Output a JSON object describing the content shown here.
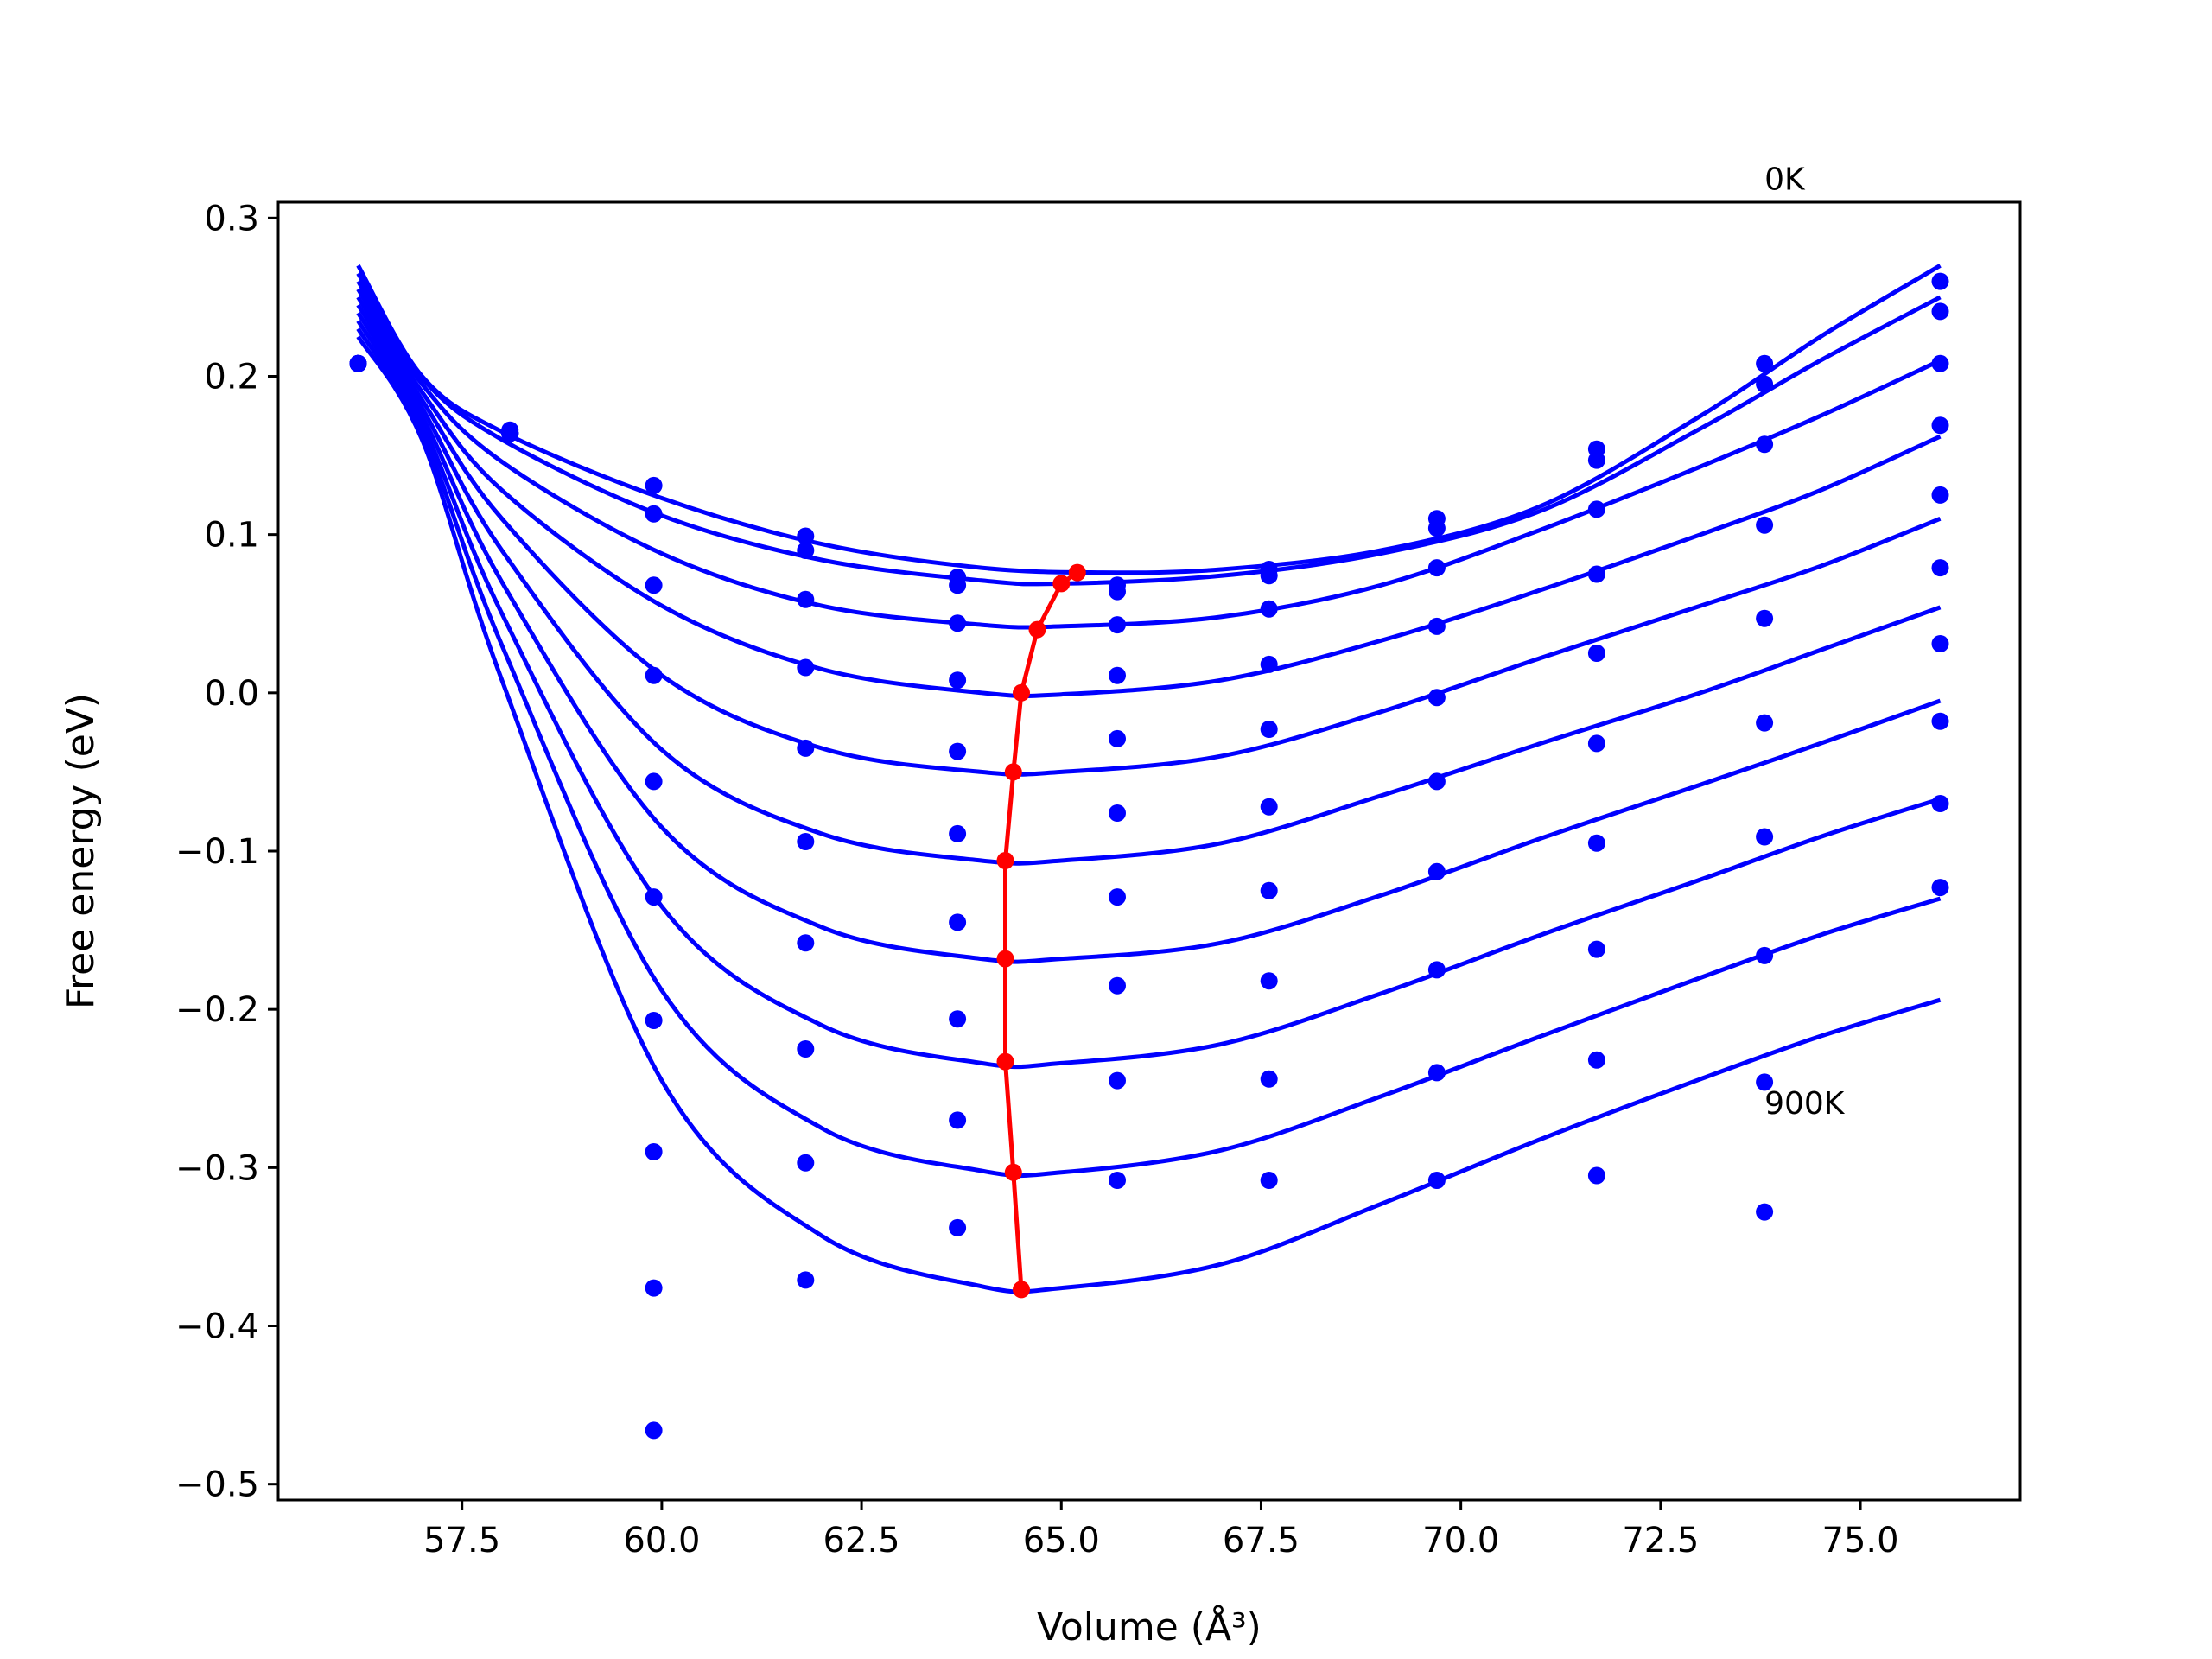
{
  "chart_data": {
    "type": "line",
    "xlabel": "Volume (Å³)",
    "ylabel": "Free energy (eV)",
    "xlim": [
      55.2,
      77.0
    ],
    "ylim": [
      -0.51,
      0.31
    ],
    "xticks": [
      57.5,
      60.0,
      62.5,
      65.0,
      67.5,
      70.0,
      72.5,
      75.0
    ],
    "xtick_labels": [
      "57.5",
      "60.0",
      "62.5",
      "65.0",
      "67.5",
      "70.0",
      "72.5",
      "75.0"
    ],
    "yticks": [
      0.3,
      0.2,
      0.1,
      0.0,
      -0.1,
      -0.2,
      -0.3,
      -0.4,
      -0.5
    ],
    "ytick_labels": [
      "0.3",
      "0.2",
      "0.1",
      "0.0",
      "−0.1",
      "−0.2",
      "−0.3",
      "−0.4",
      "−0.5"
    ],
    "grid": false,
    "legend": "none",
    "annotations": [
      {
        "text": "0K",
        "x": 73.8,
        "y": 0.318
      },
      {
        "text": "900K",
        "x": 73.8,
        "y": -0.266
      }
    ],
    "colors": {
      "fit": "#0000ff",
      "data": "#0000ff",
      "minimum": "#ff0000"
    },
    "points_x": [
      56.2,
      58.1,
      59.9,
      61.8,
      63.7,
      65.7,
      67.6,
      69.7,
      71.7,
      73.8,
      76.0
    ],
    "series": [
      {
        "curve": [
          [
            56.2,
            0.27
          ],
          [
            57.0,
            0.2
          ],
          [
            58.0,
            0.165
          ],
          [
            60.0,
            0.123
          ],
          [
            62.0,
            0.094
          ],
          [
            64.0,
            0.079
          ],
          [
            65.5,
            0.076
          ],
          [
            67.0,
            0.078
          ],
          [
            69.0,
            0.09
          ],
          [
            71.0,
            0.118
          ],
          [
            73.0,
            0.175
          ],
          [
            74.5,
            0.225
          ],
          [
            76.0,
            0.27
          ]
        ],
        "points": [
          0.208,
          0.166,
          0.131,
          0.099,
          0.073,
          0.068,
          0.078,
          0.11,
          0.154,
          0.208,
          0.26
        ]
      },
      {
        "curve": [
          [
            56.2,
            0.265
          ],
          [
            57.0,
            0.199
          ],
          [
            58.0,
            0.16
          ],
          [
            60.0,
            0.112
          ],
          [
            62.0,
            0.084
          ],
          [
            64.0,
            0.071
          ],
          [
            65.0,
            0.069
          ],
          [
            67.0,
            0.074
          ],
          [
            69.0,
            0.088
          ],
          [
            71.0,
            0.115
          ],
          [
            73.0,
            0.167
          ],
          [
            74.5,
            0.21
          ],
          [
            76.0,
            0.25
          ]
        ],
        "points": [
          0.208,
          0.164,
          0.113,
          0.09,
          0.068,
          0.064,
          0.074,
          0.104,
          0.147,
          0.195,
          0.241
        ]
      },
      {
        "curve": [
          [
            56.2,
            0.26
          ],
          [
            57.0,
            0.195
          ],
          [
            58.0,
            0.146
          ],
          [
            60.0,
            0.088
          ],
          [
            62.0,
            0.055
          ],
          [
            64.0,
            0.043
          ],
          [
            65.0,
            0.042
          ],
          [
            67.0,
            0.048
          ],
          [
            69.0,
            0.068
          ],
          [
            71.0,
            0.103
          ],
          [
            73.0,
            0.143
          ],
          [
            74.5,
            0.175
          ],
          [
            76.0,
            0.21
          ]
        ],
        "points": [
          0.208,
          0.164,
          0.068,
          0.059,
          0.044,
          0.043,
          0.053,
          0.079,
          0.116,
          0.157,
          0.208
        ]
      },
      {
        "curve": [
          [
            56.2,
            0.255
          ],
          [
            57.0,
            0.19
          ],
          [
            58.0,
            0.128
          ],
          [
            60.0,
            0.055
          ],
          [
            62.0,
            0.015
          ],
          [
            64.0,
            0.0
          ],
          [
            65.0,
            -0.001
          ],
          [
            67.0,
            0.008
          ],
          [
            69.0,
            0.033
          ],
          [
            71.0,
            0.065
          ],
          [
            73.0,
            0.1
          ],
          [
            74.5,
            0.128
          ],
          [
            76.0,
            0.162
          ]
        ],
        "points": [
          0.208,
          0.164,
          0.011,
          0.016,
          0.008,
          0.011,
          0.018,
          0.042,
          0.075,
          0.106,
          0.169
        ]
      },
      {
        "curve": [
          [
            56.2,
            0.25
          ],
          [
            57.0,
            0.185
          ],
          [
            58.0,
            0.11
          ],
          [
            60.0,
            0.011
          ],
          [
            62.0,
            -0.035
          ],
          [
            64.0,
            -0.05
          ],
          [
            65.0,
            -0.05
          ],
          [
            67.0,
            -0.04
          ],
          [
            69.0,
            -0.012
          ],
          [
            71.0,
            0.022
          ],
          [
            73.0,
            0.055
          ],
          [
            74.5,
            0.08
          ],
          [
            76.0,
            0.11
          ]
        ],
        "points": [
          0.208,
          0.164,
          -0.056,
          -0.035,
          -0.037,
          -0.029,
          -0.023,
          -0.003,
          0.025,
          0.047,
          0.125
        ]
      },
      {
        "curve": [
          [
            56.2,
            0.245
          ],
          [
            57.0,
            0.18
          ],
          [
            58.0,
            0.09
          ],
          [
            60.0,
            -0.036
          ],
          [
            62.0,
            -0.089
          ],
          [
            64.0,
            -0.106
          ],
          [
            65.0,
            -0.106
          ],
          [
            67.0,
            -0.095
          ],
          [
            69.0,
            -0.065
          ],
          [
            71.0,
            -0.032
          ],
          [
            73.0,
            0.0
          ],
          [
            74.5,
            0.027
          ],
          [
            76.0,
            0.054
          ]
        ],
        "points": [
          0.208,
          0.164,
          -0.129,
          -0.094,
          -0.089,
          -0.076,
          -0.072,
          -0.056,
          -0.032,
          -0.019,
          0.079
        ]
      },
      {
        "curve": [
          [
            56.2,
            0.24
          ],
          [
            57.0,
            0.175
          ],
          [
            58.0,
            0.07
          ],
          [
            60.0,
            -0.085
          ],
          [
            62.0,
            -0.148
          ],
          [
            64.0,
            -0.168
          ],
          [
            65.0,
            -0.168
          ],
          [
            67.0,
            -0.158
          ],
          [
            69.0,
            -0.128
          ],
          [
            71.0,
            -0.092
          ],
          [
            73.0,
            -0.058
          ],
          [
            74.5,
            -0.032
          ],
          [
            76.0,
            -0.005
          ]
        ],
        "points": [
          0.208,
          0.164,
          -0.207,
          -0.158,
          -0.145,
          -0.129,
          -0.125,
          -0.113,
          -0.095,
          -0.091,
          0.031
        ]
      },
      {
        "curve": [
          [
            56.2,
            0.235
          ],
          [
            57.0,
            0.17
          ],
          [
            58.0,
            0.05
          ],
          [
            60.0,
            -0.135
          ],
          [
            62.0,
            -0.21
          ],
          [
            64.0,
            -0.234
          ],
          [
            65.0,
            -0.234
          ],
          [
            67.0,
            -0.222
          ],
          [
            69.0,
            -0.19
          ],
          [
            71.0,
            -0.153
          ],
          [
            73.0,
            -0.118
          ],
          [
            74.5,
            -0.091
          ],
          [
            76.0,
            -0.067
          ]
        ],
        "points": [
          0.208,
          0.164,
          -0.29,
          -0.225,
          -0.206,
          -0.185,
          -0.182,
          -0.175,
          -0.162,
          -0.166,
          -0.018
        ]
      },
      {
        "curve": [
          [
            56.2,
            0.23
          ],
          [
            57.0,
            0.165
          ],
          [
            58.0,
            0.03
          ],
          [
            60.0,
            -0.188
          ],
          [
            62.0,
            -0.275
          ],
          [
            64.0,
            -0.302
          ],
          [
            65.0,
            -0.303
          ],
          [
            67.0,
            -0.289
          ],
          [
            69.0,
            -0.255
          ],
          [
            71.0,
            -0.217
          ],
          [
            73.0,
            -0.18
          ],
          [
            74.5,
            -0.153
          ],
          [
            76.0,
            -0.13
          ]
        ],
        "points": [
          0.208,
          0.164,
          -0.376,
          -0.297,
          -0.27,
          -0.245,
          -0.244,
          -0.24,
          -0.232,
          -0.246,
          -0.07
        ]
      },
      {
        "curve": [
          [
            56.2,
            0.225
          ],
          [
            57.0,
            0.16
          ],
          [
            58.0,
            0.008
          ],
          [
            60.0,
            -0.245
          ],
          [
            62.0,
            -0.343
          ],
          [
            64.0,
            -0.375
          ],
          [
            65.0,
            -0.376
          ],
          [
            67.0,
            -0.361
          ],
          [
            69.0,
            -0.323
          ],
          [
            71.0,
            -0.282
          ],
          [
            73.0,
            -0.244
          ],
          [
            74.5,
            -0.217
          ],
          [
            76.0,
            -0.194
          ]
        ],
        "points": [
          0.208,
          0.164,
          -0.466,
          -0.371,
          -0.338,
          -0.308,
          -0.308,
          -0.308,
          -0.305,
          -0.328,
          -0.123
        ]
      }
    ],
    "minimum_line": {
      "x": [
        65.2,
        65.0,
        64.7,
        64.5,
        64.4,
        64.3,
        64.3,
        64.3,
        64.4,
        64.5
      ],
      "y": [
        0.076,
        0.069,
        0.04,
        0.0,
        -0.05,
        -0.106,
        -0.168,
        -0.233,
        -0.303,
        -0.377
      ]
    }
  }
}
